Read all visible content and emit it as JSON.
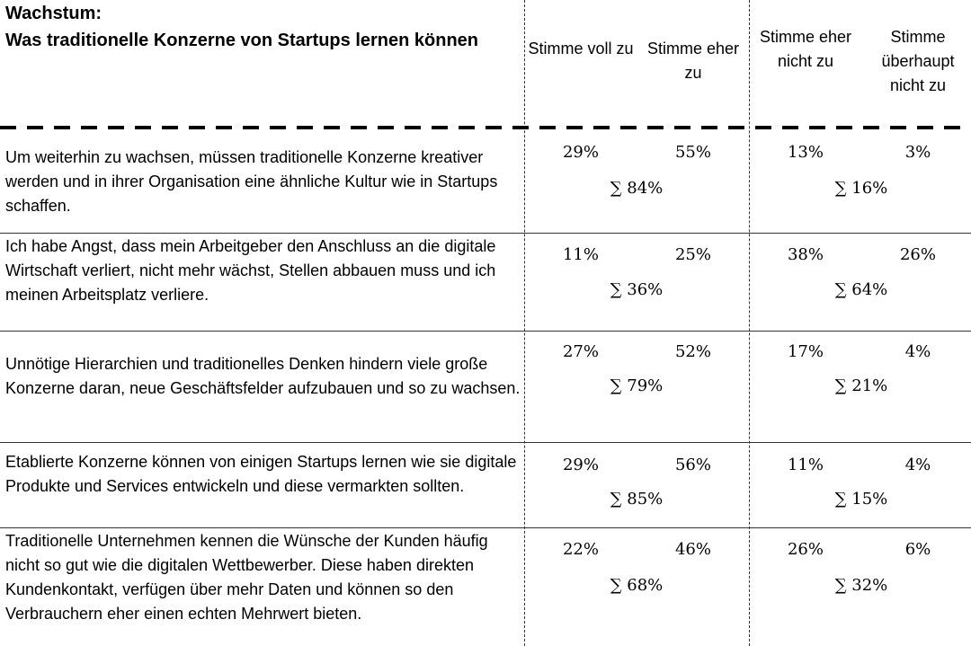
{
  "title": {
    "line1": "Wachstum:",
    "line2": "Was traditionelle Konzerne von Startups lernen können"
  },
  "columns": [
    "Stimme voll zu",
    "Stimme eher zu",
    "Stimme eher nicht zu",
    "Stimme überhaupt nicht zu"
  ],
  "rows": [
    {
      "statement": "Um weiterhin zu wachsen, müssen traditionelle Konzerne kreativer werden und in ihrer Organisation eine ähnliche Kultur wie in Startups schaffen.",
      "voll": "29%",
      "eher": "55%",
      "eher_nicht": "13%",
      "ueberhaupt_nicht": "3%",
      "sum_agree": "∑ 84%",
      "sum_disagree": "∑ 16%"
    },
    {
      "statement": "Ich habe Angst, dass mein Arbeitgeber den Anschluss an die digitale Wirtschaft verliert, nicht mehr wächst, Stellen abbauen muss und ich meinen Arbeitsplatz verliere.",
      "voll": "11%",
      "eher": "25%",
      "eher_nicht": "38%",
      "ueberhaupt_nicht": "26%",
      "sum_agree": "∑ 36%",
      "sum_disagree": "∑ 64%"
    },
    {
      "statement": "Unnötige Hierarchien und traditionelles Denken hindern viele große Konzerne daran, neue Geschäftsfelder aufzubauen und so zu wachsen.",
      "voll": "27%",
      "eher": "52%",
      "eher_nicht": "17%",
      "ueberhaupt_nicht": "4%",
      "sum_agree": "∑ 79%",
      "sum_disagree": "∑ 21%"
    },
    {
      "statement": "Etablierte Konzerne können von einigen Startups lernen wie sie digitale Produkte und Services entwickeln und diese vermarkten sollten.",
      "voll": "29%",
      "eher": "56%",
      "eher_nicht": "11%",
      "ueberhaupt_nicht": "4%",
      "sum_agree": "∑ 85%",
      "sum_disagree": "∑ 15%"
    },
    {
      "statement": "Traditionelle Unternehmen kennen die Wünsche der Kunden häufig nicht so gut wie die digitalen Wettbewerber. Diese haben direkten Kundenkontakt, verfügen über mehr Daten und können so den Verbrauchern eher einen echten Mehrwert bieten.",
      "voll": "22%",
      "eher": "46%",
      "eher_nicht": "26%",
      "ueberhaupt_nicht": "6%",
      "sum_agree": "∑ 68%",
      "sum_disagree": "∑ 32%"
    }
  ]
}
